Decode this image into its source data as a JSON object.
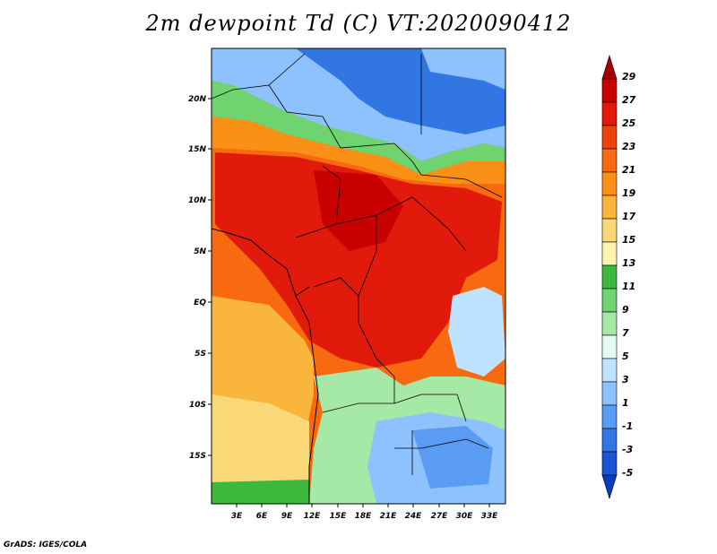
{
  "title": "2m dewpoint Td (C) VT:2020090412",
  "credit": "GrADS: IGES/COLA",
  "lat_labels": [
    "20N",
    "15N",
    "10N",
    "5N",
    "EQ",
    "5S",
    "10S",
    "15S"
  ],
  "lon_labels": [
    "3E",
    "6E",
    "9E",
    "12E",
    "15E",
    "18E",
    "21E",
    "24E",
    "27E",
    "30E",
    "33E"
  ],
  "colorbar": {
    "labels": [
      "29",
      "27",
      "25",
      "23",
      "21",
      "19",
      "17",
      "15",
      "13",
      "11",
      "9",
      "7",
      "5",
      "3",
      "1",
      "-1",
      "-3",
      "-5"
    ],
    "colors": [
      "#a50000",
      "#c80000",
      "#e11a0c",
      "#f0420f",
      "#f76a10",
      "#fa9116",
      "#f9b53c",
      "#fbd877",
      "#fdf3b0",
      "#3cb83c",
      "#6fd46f",
      "#a6e8a6",
      "#e4fbf4",
      "#bfe3ff",
      "#8ec2ff",
      "#5a9cf4",
      "#3276e4",
      "#1a56d2",
      "#0a3cc0"
    ]
  }
}
